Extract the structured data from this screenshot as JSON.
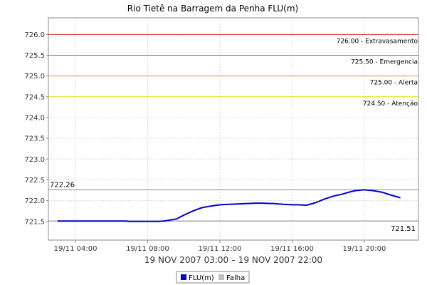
{
  "chart_data": {
    "type": "line",
    "title": "Rio Tietê na Barragem da Penha FLU(m)",
    "xlabel": "19 NOV 2007 03:00 – 19 NOV 2007 22:00",
    "ylabel": "",
    "x_unit": "hours",
    "xlim": [
      2.5,
      23.0
    ],
    "ylim": [
      721.05,
      726.4
    ],
    "yticks": [
      721.5,
      722.0,
      722.5,
      723.0,
      723.5,
      724.0,
      724.5,
      725.0,
      725.5,
      726.0
    ],
    "ytick_labels": [
      "721.5",
      "722.0",
      "722.5",
      "723.0",
      "723.5",
      "724.0",
      "724.5",
      "725.0",
      "725.5",
      "726.0"
    ],
    "xticks": [
      4,
      8,
      12,
      16,
      20
    ],
    "xtick_labels": [
      "19/11 04:00",
      "19/11 08:00",
      "19/11 12:00",
      "19/11 16:00",
      "19/11 20:00"
    ],
    "grid": true,
    "legend_position": "bottom",
    "thresholds": [
      {
        "value": 726.0,
        "label": "726.00 - Extravasamento",
        "color": "#cc3333"
      },
      {
        "value": 725.5,
        "label": "725.50 - Emergencia",
        "color": "#cc33cc"
      },
      {
        "value": 725.0,
        "label": "725.00 - Alerta",
        "color": "#ff9900"
      },
      {
        "value": 724.5,
        "label": "724.50 - Atenção",
        "color": "#e6e600"
      }
    ],
    "reference_lines": [
      {
        "value": 722.26,
        "label": "722.26",
        "color": "#888888"
      },
      {
        "value": 721.51,
        "label": "721.51",
        "color": "#888888"
      }
    ],
    "series": [
      {
        "name": "FLU(m)",
        "color": "#0000cc",
        "x": [
          3.0,
          4.0,
          5.0,
          6.0,
          6.8,
          7.0,
          8.0,
          8.6,
          8.9,
          9.2,
          9.6,
          10.0,
          10.5,
          11.0,
          11.5,
          12.0,
          13.0,
          14.0,
          14.3,
          15.0,
          15.5,
          16.0,
          16.3,
          16.8,
          17.3,
          17.8,
          18.3,
          18.8,
          19.2,
          19.5,
          20.0,
          20.5,
          21.0,
          21.5,
          22.0
        ],
        "y": [
          721.51,
          721.51,
          721.51,
          721.51,
          721.51,
          721.5,
          721.5,
          721.5,
          721.51,
          721.53,
          721.56,
          721.65,
          721.75,
          721.83,
          721.87,
          721.9,
          721.92,
          721.94,
          721.94,
          721.93,
          721.91,
          721.9,
          721.9,
          721.89,
          721.95,
          722.04,
          722.11,
          722.16,
          722.21,
          722.24,
          722.26,
          722.24,
          722.2,
          722.13,
          722.07
        ]
      },
      {
        "name": "Falha",
        "color": "#c0c0c0",
        "x": [],
        "y": []
      }
    ]
  }
}
